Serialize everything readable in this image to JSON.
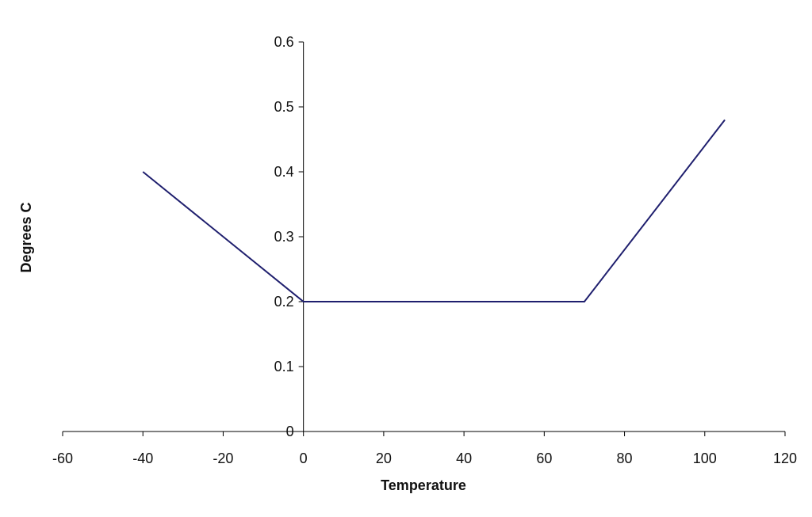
{
  "chart_data": {
    "type": "line",
    "title": "",
    "xlabel": "Temperature",
    "ylabel": "Degrees C",
    "xlim": [
      -60,
      120
    ],
    "ylim": [
      0,
      0.6
    ],
    "x_ticks": [
      "-60",
      "-40",
      "-20",
      "0",
      "20",
      "40",
      "60",
      "80",
      "100",
      "120"
    ],
    "y_ticks": [
      "0",
      "0.1",
      "0.2",
      "0.3",
      "0.4",
      "0.5",
      "0.6"
    ],
    "grid": false,
    "legend": "none",
    "series": [
      {
        "color": "#1f1f6e",
        "x": [
          -40,
          0,
          70,
          105
        ],
        "y": [
          0.4,
          0.2,
          0.2,
          0.48
        ]
      }
    ]
  }
}
